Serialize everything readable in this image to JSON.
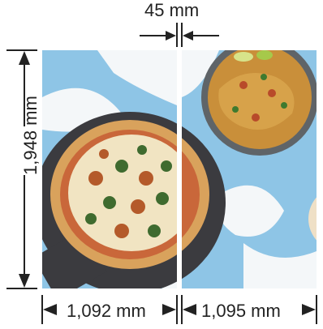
{
  "dimensions": {
    "gap": "45 mm",
    "height": "1,948 mm",
    "left_panel_width": "1,092 mm",
    "right_panel_width": "1,095 mm"
  },
  "colors": {
    "background_blue": "#8ec5e6",
    "background_white": "#f4f7f9",
    "dimension_line": "#222222"
  },
  "panels": {
    "left": {
      "image": "pizza-photo"
    },
    "right": {
      "image": "noodles-photo"
    }
  }
}
